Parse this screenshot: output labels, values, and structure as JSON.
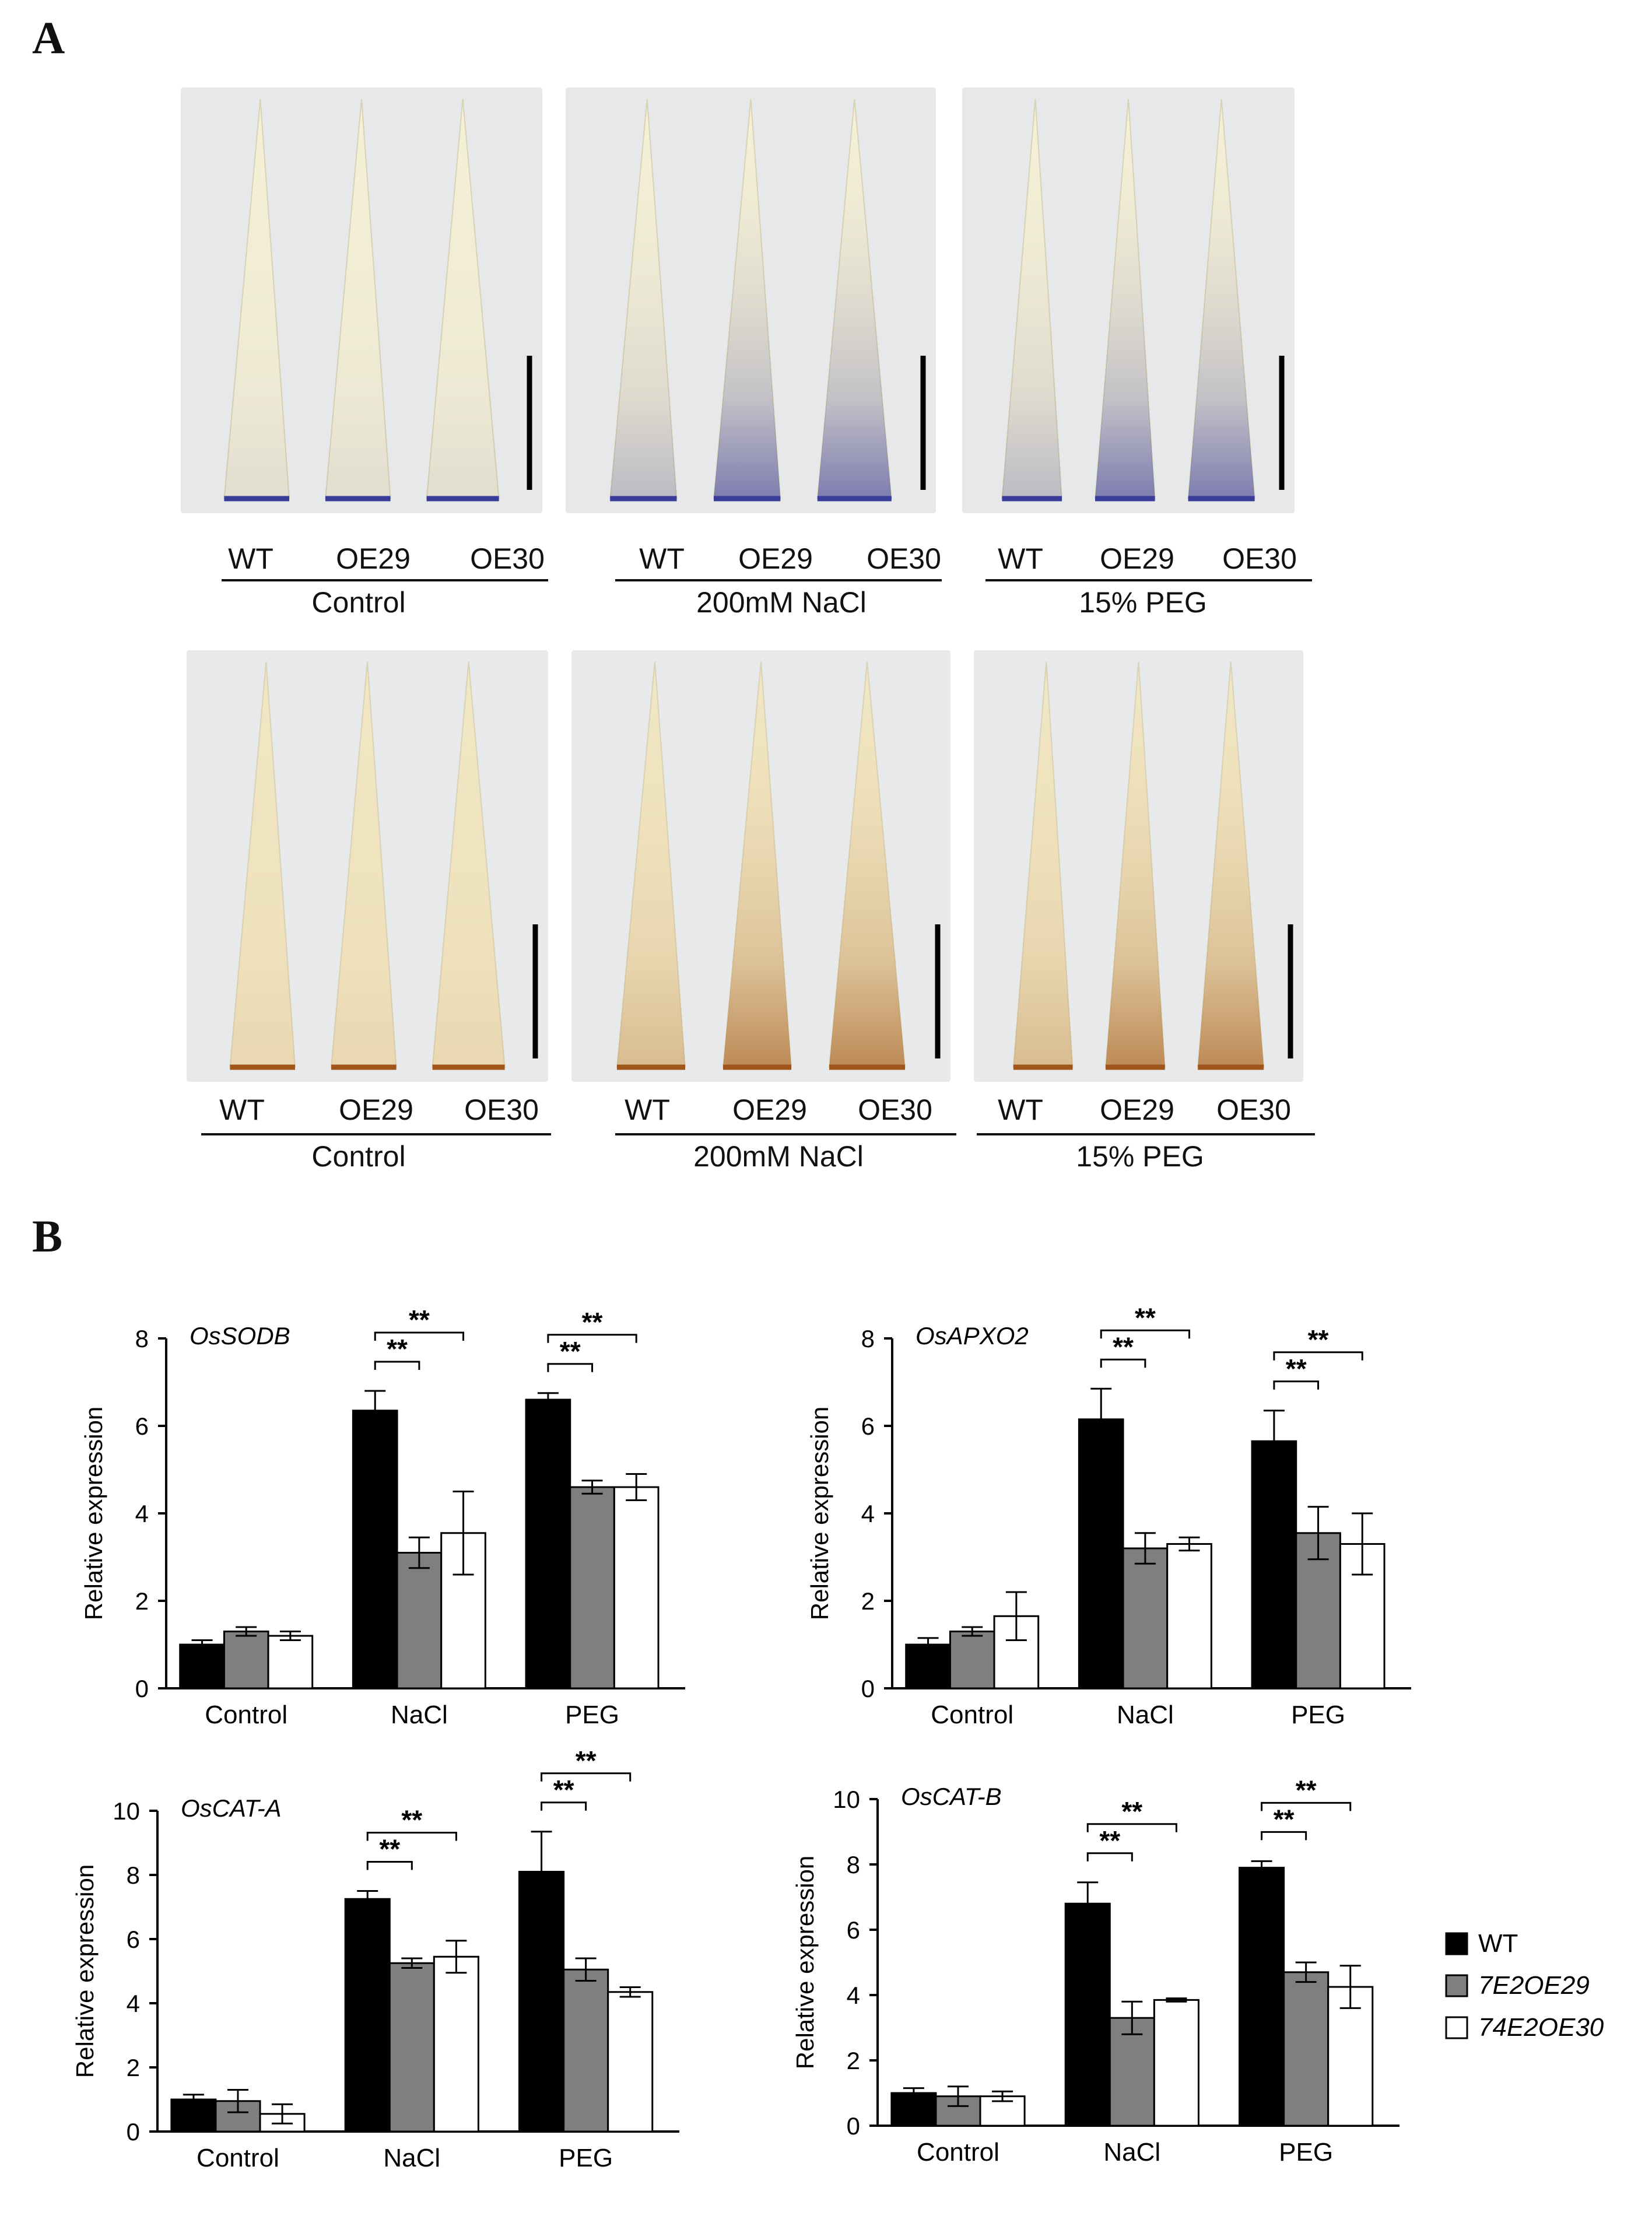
{
  "panel_a": {
    "letter": "A",
    "rows": [
      {
        "stain": "nbt",
        "colors": {
          "bg": "#e6e8ea",
          "leaf": "#f4f0d6",
          "stain": "#3a3c9a"
        },
        "groups": [
          {
            "condition": "Control",
            "labels": [
              "WT",
              "OE29",
              "OE30"
            ]
          },
          {
            "condition": "200mM NaCl",
            "labels": [
              "WT",
              "OE29",
              "OE30"
            ]
          },
          {
            "condition": "15% PEG",
            "labels": [
              "WT",
              "OE29",
              "OE30"
            ]
          }
        ]
      },
      {
        "stain": "dab",
        "colors": {
          "bg": "#e8e9ea",
          "leaf": "#f1e6c2",
          "stain": "#a0561a"
        },
        "groups": [
          {
            "condition": "Control",
            "labels": [
              "WT",
              "OE29",
              "OE30"
            ]
          },
          {
            "condition": "200mM NaCl",
            "labels": [
              "WT",
              "OE29",
              "OE30"
            ]
          },
          {
            "condition": "15% PEG",
            "labels": [
              "WT",
              "OE29",
              "OE30"
            ]
          }
        ]
      }
    ]
  },
  "panel_b": {
    "letter": "B",
    "legend": [
      {
        "label": "WT",
        "color": "#000000",
        "italic": false
      },
      {
        "label": "7E2OE29",
        "color": "#7f7f7f",
        "italic": true
      },
      {
        "label": "74E2OE30",
        "color": "#ffffff",
        "italic": true
      }
    ],
    "significance_label": "**"
  },
  "chart_data": [
    {
      "type": "bar",
      "title": "OsSODB",
      "ylabel": "Relative expression",
      "xlabel": "",
      "ylim": [
        0,
        8
      ],
      "yticks": [
        0,
        2,
        4,
        6,
        8
      ],
      "categories": [
        "Control",
        "NaCl",
        "PEG"
      ],
      "series": [
        {
          "name": "WT",
          "values": [
            1.0,
            6.35,
            6.6
          ],
          "errors": [
            0.1,
            0.45,
            0.15
          ]
        },
        {
          "name": "7E2OE29",
          "values": [
            1.3,
            3.1,
            4.6
          ],
          "errors": [
            0.1,
            0.35,
            0.15
          ]
        },
        {
          "name": "74E2OE30",
          "values": [
            1.2,
            3.55,
            4.6
          ],
          "errors": [
            0.1,
            0.95,
            0.3
          ]
        }
      ],
      "significance": [
        {
          "category": "NaCl",
          "pairs": [
            "WT-7E2OE29",
            "WT-74E2OE30"
          ],
          "label": "**"
        },
        {
          "category": "PEG",
          "pairs": [
            "WT-7E2OE29",
            "WT-74E2OE30"
          ],
          "label": "**"
        }
      ]
    },
    {
      "type": "bar",
      "title": "OsAPXO2",
      "ylabel": "Relative expression",
      "xlabel": "",
      "ylim": [
        0,
        8
      ],
      "yticks": [
        0,
        2,
        4,
        6,
        8
      ],
      "categories": [
        "Control",
        "NaCl",
        "PEG"
      ],
      "series": [
        {
          "name": "WT",
          "values": [
            1.0,
            6.15,
            5.65
          ],
          "errors": [
            0.15,
            0.7,
            0.7
          ]
        },
        {
          "name": "7E2OE29",
          "values": [
            1.3,
            3.2,
            3.55
          ],
          "errors": [
            0.1,
            0.35,
            0.6
          ]
        },
        {
          "name": "74E2OE30",
          "values": [
            1.65,
            3.3,
            3.3
          ],
          "errors": [
            0.55,
            0.15,
            0.7
          ]
        }
      ],
      "significance": [
        {
          "category": "NaCl",
          "pairs": [
            "WT-7E2OE29",
            "WT-74E2OE30"
          ],
          "label": "**"
        },
        {
          "category": "PEG",
          "pairs": [
            "WT-7E2OE29",
            "WT-74E2OE30"
          ],
          "label": "**"
        }
      ]
    },
    {
      "type": "bar",
      "title": "OsCAT-A",
      "ylabel": "Relative expression",
      "xlabel": "",
      "ylim": [
        0,
        10
      ],
      "yticks": [
        0,
        2,
        4,
        6,
        8,
        10
      ],
      "categories": [
        "Control",
        "NaCl",
        "PEG"
      ],
      "series": [
        {
          "name": "WT",
          "values": [
            1.0,
            7.25,
            8.1
          ],
          "errors": [
            0.15,
            0.25,
            1.25
          ]
        },
        {
          "name": "7E2OE29",
          "values": [
            0.95,
            5.25,
            5.05
          ],
          "errors": [
            0.35,
            0.15,
            0.35
          ]
        },
        {
          "name": "74E2OE30",
          "values": [
            0.55,
            5.45,
            4.35
          ],
          "errors": [
            0.3,
            0.5,
            0.15
          ]
        }
      ],
      "significance": [
        {
          "category": "NaCl",
          "pairs": [
            "WT-7E2OE29",
            "WT-74E2OE30"
          ],
          "label": "**"
        },
        {
          "category": "PEG",
          "pairs": [
            "WT-7E2OE29",
            "WT-74E2OE30"
          ],
          "label": "**"
        }
      ]
    },
    {
      "type": "bar",
      "title": "OsCAT-B",
      "ylabel": "Relative expression",
      "xlabel": "",
      "ylim": [
        0,
        10
      ],
      "yticks": [
        0,
        2,
        4,
        6,
        8,
        10
      ],
      "categories": [
        "Control",
        "NaCl",
        "PEG"
      ],
      "series": [
        {
          "name": "WT",
          "values": [
            1.0,
            6.8,
            7.9
          ],
          "errors": [
            0.15,
            0.65,
            0.2
          ]
        },
        {
          "name": "7E2OE29",
          "values": [
            0.9,
            3.3,
            4.7
          ],
          "errors": [
            0.3,
            0.5,
            0.3
          ]
        },
        {
          "name": "74E2OE30",
          "values": [
            0.9,
            3.85,
            4.25
          ],
          "errors": [
            0.15,
            0.05,
            0.65
          ]
        }
      ],
      "significance": [
        {
          "category": "NaCl",
          "pairs": [
            "WT-7E2OE29",
            "WT-74E2OE30"
          ],
          "label": "**"
        },
        {
          "category": "PEG",
          "pairs": [
            "WT-7E2OE29",
            "WT-74E2OE30"
          ],
          "label": "**"
        }
      ]
    }
  ]
}
